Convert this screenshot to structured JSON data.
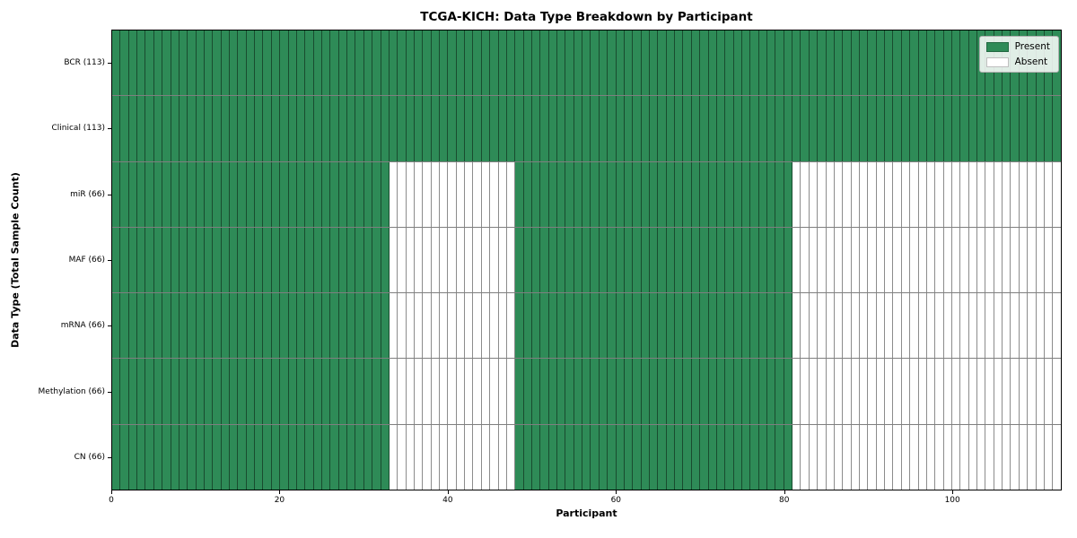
{
  "chart_data": {
    "type": "heatmap",
    "title": "TCGA-KICH: Data Type Breakdown by Participant",
    "xlabel": "Participant",
    "ylabel": "Data Type (Total Sample Count)",
    "n_participants": 113,
    "x_ticks": [
      0,
      20,
      40,
      60,
      80,
      100
    ],
    "colors": {
      "present": "#2E8B57",
      "absent": "#FFFFFF",
      "grid": "rgba(0,0,0,0.45)",
      "spine": "#000000"
    },
    "legend": {
      "position": "upper right",
      "items": [
        {
          "label": "Present",
          "color": "#2E8B57"
        },
        {
          "label": "Absent",
          "color": "#FFFFFF"
        }
      ]
    },
    "rows": [
      {
        "label": "BCR (113)",
        "total_samples": 113,
        "present_ranges": [
          [
            0,
            113
          ]
        ]
      },
      {
        "label": "Clinical (113)",
        "total_samples": 113,
        "present_ranges": [
          [
            0,
            113
          ]
        ]
      },
      {
        "label": "miR (66)",
        "total_samples": 66,
        "present_ranges": [
          [
            0,
            33
          ],
          [
            48,
            81
          ]
        ]
      },
      {
        "label": "MAF (66)",
        "total_samples": 66,
        "present_ranges": [
          [
            0,
            33
          ],
          [
            48,
            81
          ]
        ]
      },
      {
        "label": "mRNA (66)",
        "total_samples": 66,
        "present_ranges": [
          [
            0,
            33
          ],
          [
            48,
            81
          ]
        ]
      },
      {
        "label": "Methylation (66)",
        "total_samples": 66,
        "present_ranges": [
          [
            0,
            33
          ],
          [
            48,
            81
          ]
        ]
      },
      {
        "label": "CN (66)",
        "total_samples": 66,
        "present_ranges": [
          [
            0,
            33
          ],
          [
            48,
            81
          ]
        ]
      }
    ]
  }
}
